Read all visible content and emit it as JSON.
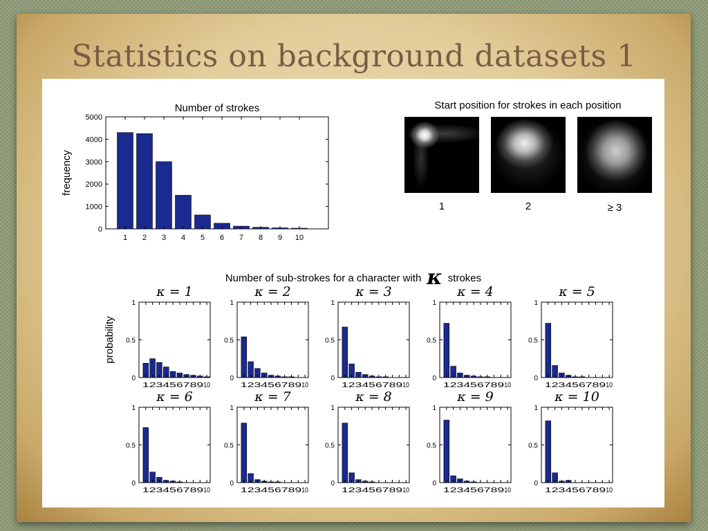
{
  "slide": {
    "title": "Statistics on background datasets 1"
  },
  "heatmaps": {
    "title": "Start position for strokes in each position",
    "labels": [
      "1",
      "2",
      "≥ 3"
    ]
  },
  "substrokes": {
    "title_before": "Number of sub-strokes for a character with",
    "title_symbol": "κ",
    "title_after": "strokes"
  },
  "colors": {
    "bar": "#1a2a8f",
    "axis": "#000000",
    "figure_bg": "#ffffff"
  },
  "chart_data": [
    {
      "type": "bar",
      "title": "Number of strokes",
      "xlabel": "",
      "ylabel": "frequency",
      "categories": [
        "1",
        "2",
        "3",
        "4",
        "5",
        "6",
        "7",
        "8",
        "9",
        "10"
      ],
      "values": [
        4300,
        4250,
        3000,
        1500,
        620,
        250,
        120,
        70,
        45,
        30
      ],
      "ylim": [
        0,
        5000
      ],
      "xlim": [
        0,
        11.5
      ],
      "yticks": [
        0,
        1000,
        2000,
        3000,
        4000,
        5000
      ]
    },
    {
      "type": "bar",
      "title": "κ = 1",
      "ylabel": "probability",
      "categories": [
        "1",
        "2",
        "3",
        "4",
        "5",
        "6",
        "7",
        "8",
        "9",
        "10"
      ],
      "values": [
        0.19,
        0.25,
        0.2,
        0.14,
        0.08,
        0.06,
        0.04,
        0.03,
        0.02,
        0.01
      ],
      "ylim": [
        0,
        1
      ],
      "yticks": [
        0,
        0.5,
        1
      ]
    },
    {
      "type": "bar",
      "title": "κ = 2",
      "categories": [
        "1",
        "2",
        "3",
        "4",
        "5",
        "6",
        "7",
        "8",
        "9",
        "10"
      ],
      "values": [
        0.54,
        0.21,
        0.12,
        0.06,
        0.03,
        0.02,
        0.01,
        0.01,
        0.0,
        0.0
      ],
      "ylim": [
        0,
        1
      ],
      "yticks": [
        0,
        0.5,
        1
      ]
    },
    {
      "type": "bar",
      "title": "κ = 3",
      "categories": [
        "1",
        "2",
        "3",
        "4",
        "5",
        "6",
        "7",
        "8",
        "9",
        "10"
      ],
      "values": [
        0.67,
        0.18,
        0.07,
        0.04,
        0.02,
        0.01,
        0.01,
        0.0,
        0.0,
        0.0
      ],
      "ylim": [
        0,
        1
      ],
      "yticks": [
        0,
        0.5,
        1
      ]
    },
    {
      "type": "bar",
      "title": "κ = 4",
      "categories": [
        "1",
        "2",
        "3",
        "4",
        "5",
        "6",
        "7",
        "8",
        "9",
        "10"
      ],
      "values": [
        0.72,
        0.15,
        0.06,
        0.03,
        0.02,
        0.01,
        0.01,
        0.0,
        0.0,
        0.0
      ],
      "ylim": [
        0,
        1
      ],
      "yticks": [
        0,
        0.5,
        1
      ]
    },
    {
      "type": "bar",
      "title": "κ = 5",
      "categories": [
        "1",
        "2",
        "3",
        "4",
        "5",
        "6",
        "7",
        "8",
        "9",
        "10"
      ],
      "values": [
        0.72,
        0.16,
        0.06,
        0.03,
        0.01,
        0.01,
        0.0,
        0.0,
        0.0,
        0.0
      ],
      "ylim": [
        0,
        1
      ],
      "yticks": [
        0,
        0.5,
        1
      ]
    },
    {
      "type": "bar",
      "title": "κ = 6",
      "ylabel": "",
      "categories": [
        "1",
        "2",
        "3",
        "4",
        "5",
        "6",
        "7",
        "8",
        "9",
        "10"
      ],
      "values": [
        0.73,
        0.14,
        0.07,
        0.03,
        0.02,
        0.01,
        0.0,
        0.0,
        0.0,
        0.0
      ],
      "ylim": [
        0,
        1
      ],
      "yticks": [
        0,
        0.5,
        1
      ]
    },
    {
      "type": "bar",
      "title": "κ = 7",
      "categories": [
        "1",
        "2",
        "3",
        "4",
        "5",
        "6",
        "7",
        "8",
        "9",
        "10"
      ],
      "values": [
        0.79,
        0.12,
        0.04,
        0.02,
        0.01,
        0.01,
        0.0,
        0.0,
        0.0,
        0.0
      ],
      "ylim": [
        0,
        1
      ],
      "yticks": [
        0,
        0.5,
        1
      ]
    },
    {
      "type": "bar",
      "title": "κ = 8",
      "categories": [
        "1",
        "2",
        "3",
        "4",
        "5",
        "6",
        "7",
        "8",
        "9",
        "10"
      ],
      "values": [
        0.79,
        0.13,
        0.04,
        0.02,
        0.01,
        0.0,
        0.0,
        0.0,
        0.0,
        0.0
      ],
      "ylim": [
        0,
        1
      ],
      "yticks": [
        0,
        0.5,
        1
      ]
    },
    {
      "type": "bar",
      "title": "κ = 9",
      "categories": [
        "1",
        "2",
        "3",
        "4",
        "5",
        "6",
        "7",
        "8",
        "9",
        "10"
      ],
      "values": [
        0.83,
        0.09,
        0.05,
        0.02,
        0.01,
        0.0,
        0.0,
        0.0,
        0.0,
        0.0
      ],
      "ylim": [
        0,
        1
      ],
      "yticks": [
        0,
        0.5,
        1
      ]
    },
    {
      "type": "bar",
      "title": "κ = 10",
      "categories": [
        "1",
        "2",
        "3",
        "4",
        "5",
        "6",
        "7",
        "8",
        "9",
        "10"
      ],
      "values": [
        0.82,
        0.13,
        0.02,
        0.03,
        0.0,
        0.0,
        0.0,
        0.0,
        0.0,
        0.0
      ],
      "ylim": [
        0,
        1
      ],
      "yticks": [
        0,
        0.5,
        1
      ]
    }
  ]
}
